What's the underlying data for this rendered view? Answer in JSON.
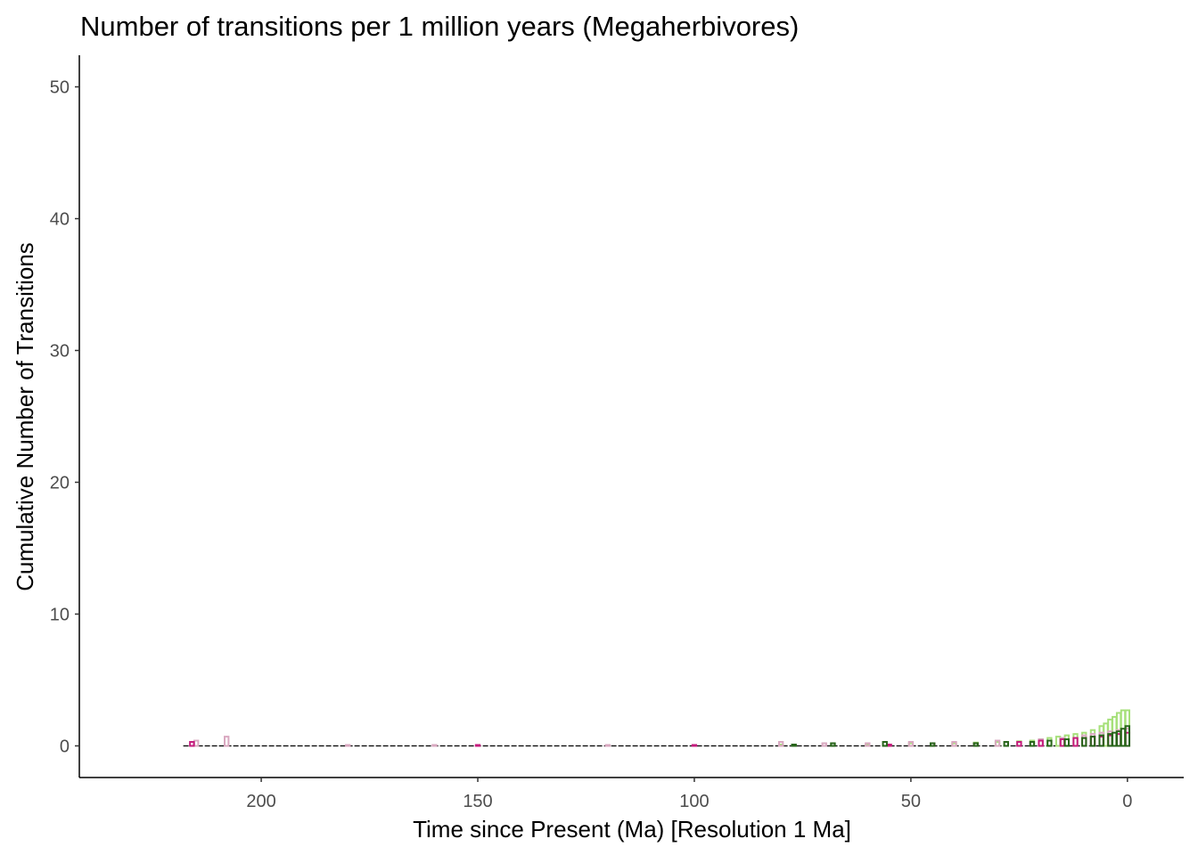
{
  "chart_data": {
    "type": "bar",
    "title": "Number of transitions per 1 million years (Megaherbivores)",
    "xlabel": "Time since Present (Ma) [Resolution 1 Ma]",
    "ylabel": "Cumulative Number of Transitions",
    "xlim": [
      242,
      -13
    ],
    "ylim": [
      -2.4,
      52.4
    ],
    "x_reversed": true,
    "x_ticks": [
      200,
      150,
      100,
      50,
      0
    ],
    "y_ticks": [
      0,
      10,
      20,
      30,
      40,
      50
    ],
    "grid": false,
    "legend": "none",
    "bar_fill": "none",
    "baseline_color": "#000000",
    "colors": {
      "light_pink": "#f2b6d2",
      "magenta": "#c51b7d",
      "dark_magenta": "#8e0152",
      "light_green": "#a6e07a",
      "dark_green": "#276419",
      "darkest_green": "#0a3b1a",
      "grey_pink": "#d9a8c0"
    },
    "series": [
      {
        "color": "#a6e07a",
        "x": [
          80,
          60,
          50,
          40,
          35,
          30,
          25,
          22,
          20,
          18,
          16,
          14,
          12,
          10,
          8,
          6,
          5,
          4,
          3,
          2,
          1,
          0
        ],
        "values": [
          0.1,
          0.1,
          0.2,
          0.2,
          0.25,
          0.3,
          0.35,
          0.4,
          0.5,
          0.6,
          0.7,
          0.8,
          0.9,
          1.0,
          1.2,
          1.5,
          1.7,
          2.0,
          2.2,
          2.5,
          2.7,
          2.7
        ]
      },
      {
        "color": "#d9a8c0",
        "x": [
          215,
          208,
          180,
          160,
          120,
          80,
          70,
          60,
          50,
          40,
          30,
          20,
          15,
          10,
          8,
          6,
          4,
          2,
          0
        ],
        "values": [
          0.4,
          0.7,
          0.05,
          0.05,
          0.05,
          0.3,
          0.2,
          0.2,
          0.3,
          0.3,
          0.4,
          0.5,
          0.6,
          0.8,
          0.9,
          1.0,
          1.1,
          1.2,
          1.3
        ]
      },
      {
        "color": "#c51b7d",
        "x": [
          216,
          150,
          100,
          55,
          45,
          35,
          25,
          20,
          15,
          12,
          10,
          8,
          6,
          4,
          2,
          0
        ],
        "values": [
          0.3,
          0.05,
          0.05,
          0.1,
          0.2,
          0.2,
          0.3,
          0.4,
          0.5,
          0.6,
          0.6,
          0.7,
          0.7,
          0.8,
          0.9,
          1.0
        ]
      },
      {
        "color": "#276419",
        "x": [
          77,
          68,
          56,
          45,
          35,
          28,
          22,
          18,
          14,
          10,
          8,
          6,
          4,
          3,
          2,
          1,
          0
        ],
        "values": [
          0.1,
          0.2,
          0.3,
          0.2,
          0.2,
          0.3,
          0.3,
          0.4,
          0.5,
          0.6,
          0.7,
          0.8,
          0.9,
          1.0,
          1.1,
          1.3,
          1.5
        ]
      }
    ]
  }
}
